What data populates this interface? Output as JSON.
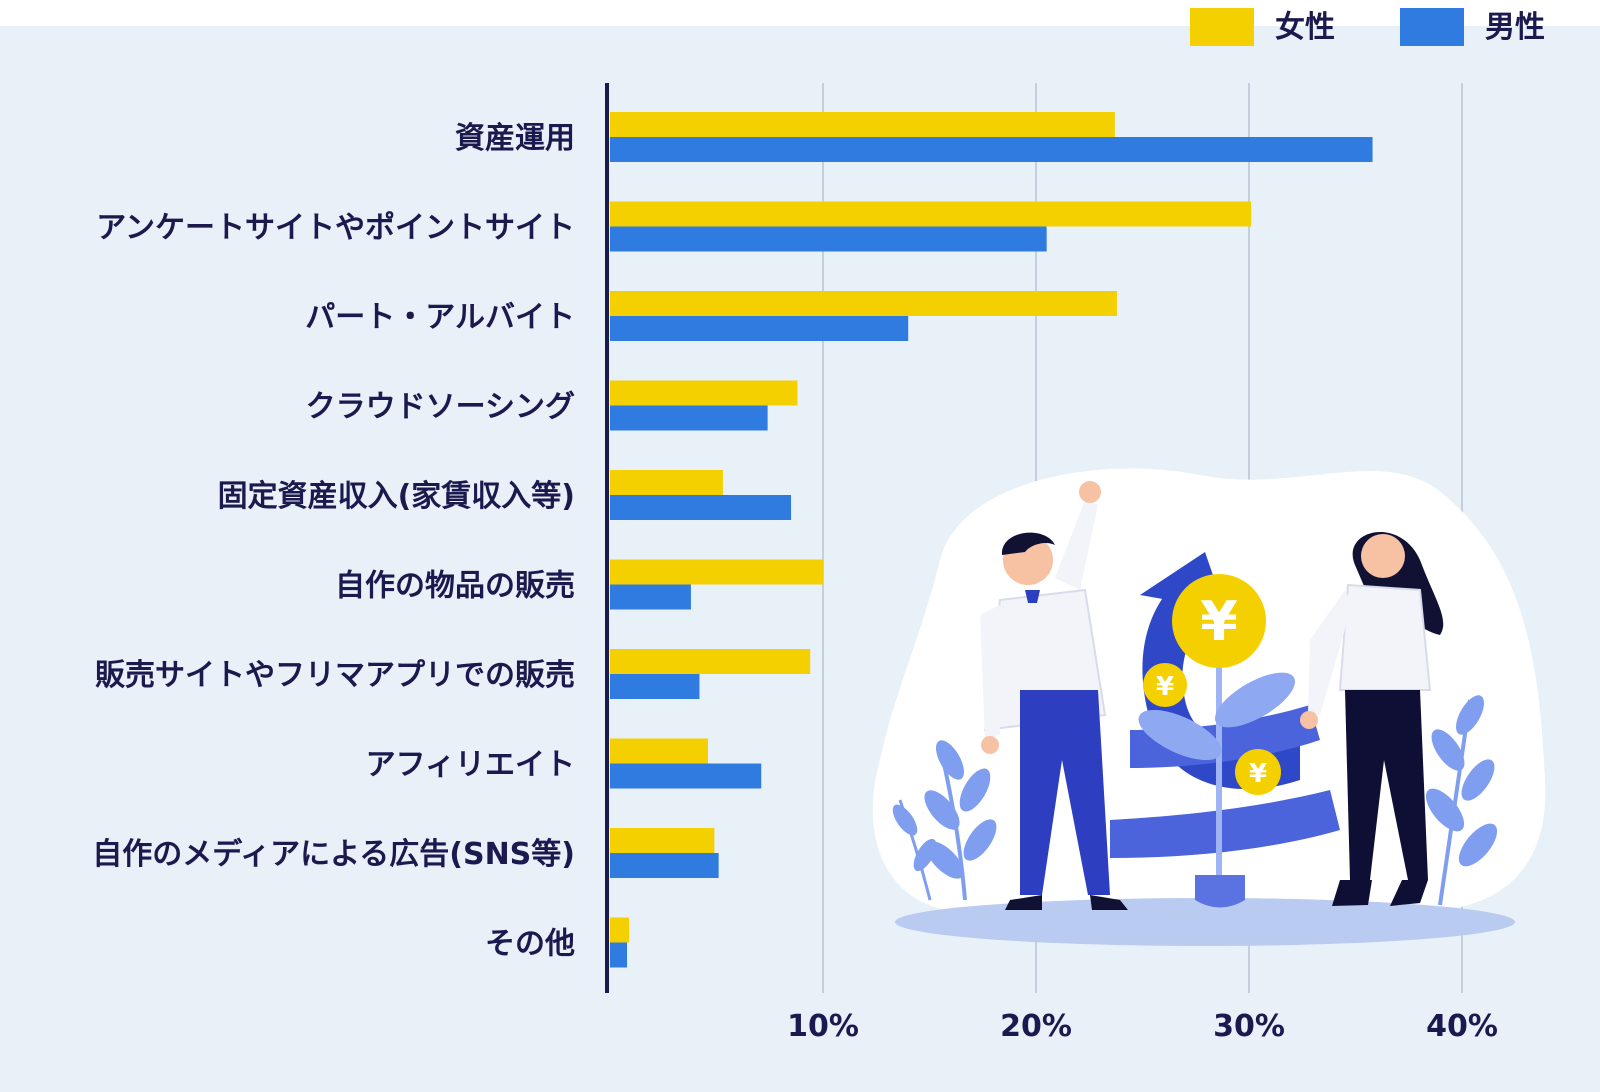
{
  "chart_data": {
    "type": "bar",
    "orientation": "horizontal",
    "categories": [
      "資産運用",
      "アンケートサイトやポイントサイト",
      "パート・アルバイト",
      "クラウドソーシング",
      "固定資産収入(家賃収入等)",
      "自作の物品の販売",
      "販売サイトやフリマアプリでの販売",
      "アフィリエイト",
      "自作のメディアによる広告(SNS等)",
      "その他"
    ],
    "series": [
      {
        "name": "女性",
        "color": "#f5d000",
        "values": [
          23.7,
          30.1,
          23.8,
          8.8,
          5.3,
          10.0,
          9.4,
          4.6,
          4.9,
          0.9
        ]
      },
      {
        "name": "男性",
        "color": "#2f7be0",
        "values": [
          35.8,
          20.5,
          14.0,
          7.4,
          8.5,
          3.8,
          4.2,
          7.1,
          5.1,
          0.8
        ]
      }
    ],
    "xticks": [
      "10%",
      "20%",
      "30%",
      "40%"
    ],
    "xtick_values": [
      10,
      20,
      30,
      40
    ],
    "xlim": [
      0,
      42
    ],
    "grid": true,
    "legend_position": "top-right"
  },
  "colors": {
    "background": "#e8f0f8",
    "text": "#1a1a4e",
    "axis": "#1a1a4e",
    "grid": "#c5cfdc"
  },
  "illustration": "people-with-yen-money-plant-illustration"
}
